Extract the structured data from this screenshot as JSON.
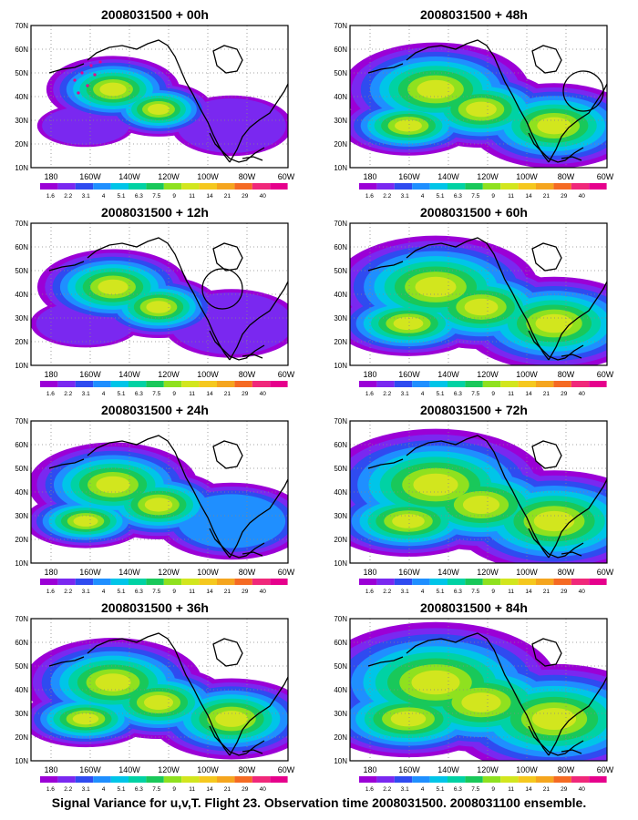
{
  "axes": {
    "y_ticks": [
      "70N",
      "60N",
      "50N",
      "40N",
      "30N",
      "20N",
      "10N"
    ],
    "x_ticks": [
      "180",
      "160W",
      "140W",
      "120W",
      "100W",
      "80W",
      "60W"
    ]
  },
  "legend": {
    "labels": [
      "1.6",
      "2.2",
      "3.1",
      "4",
      "5.1",
      "6.3",
      "7.5",
      "9",
      "11",
      "14",
      "21",
      "29",
      "40"
    ],
    "colors": [
      "#9b00d6",
      "#7a28f0",
      "#2f4bf0",
      "#1f8fff",
      "#00c5e8",
      "#00d2a4",
      "#19c85a",
      "#8fe11f",
      "#d2e61e",
      "#f5c81e",
      "#f5a51e",
      "#f56a23",
      "#f0287a",
      "#e6008c"
    ]
  },
  "panels": [
    {
      "id": "p00",
      "title": "2008031500 + 00h",
      "intensity": 0.35,
      "circle": false
    },
    {
      "id": "p48",
      "title": "2008031500 + 48h",
      "intensity": 0.65,
      "circle": true
    },
    {
      "id": "p12",
      "title": "2008031500 + 12h",
      "intensity": 0.45,
      "circle": true
    },
    {
      "id": "p60",
      "title": "2008031500 + 60h",
      "intensity": 0.75,
      "circle": false
    },
    {
      "id": "p24",
      "title": "2008031500 + 24h",
      "intensity": 0.55,
      "circle": false
    },
    {
      "id": "p72",
      "title": "2008031500 + 72h",
      "intensity": 0.85,
      "circle": false
    },
    {
      "id": "p36",
      "title": "2008031500 + 36h",
      "intensity": 0.6,
      "circle": false
    },
    {
      "id": "p84",
      "title": "2008031500 + 84h",
      "intensity": 0.95,
      "circle": false
    }
  ],
  "caption": "Signal Variance for u,v,T. Flight 23. Observation time 2008031500. 2008031100 ensemble."
}
